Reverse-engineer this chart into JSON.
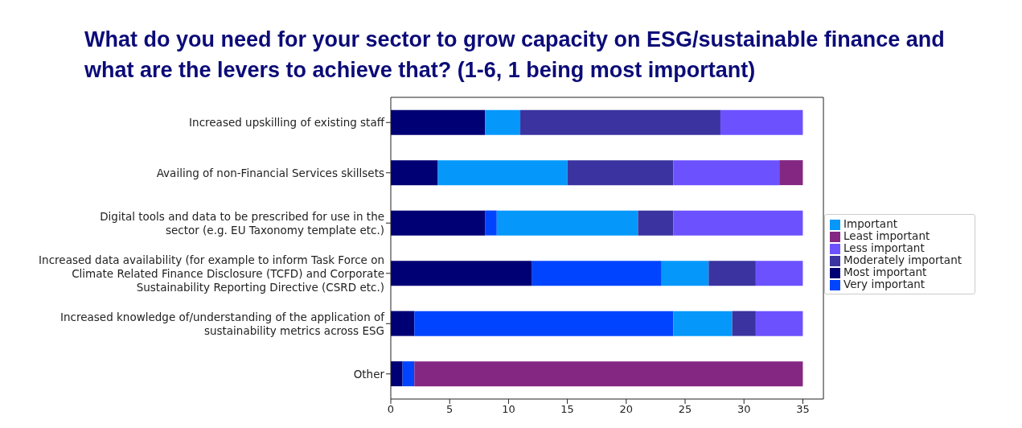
{
  "chart_data": {
    "type": "bar",
    "orientation": "horizontal",
    "stacked": true,
    "title": "What do you need for your sector to grow capacity on ESG/sustainable finance and what are the levers to achieve that? (1-6, 1 being most important)",
    "categories": [
      "Increased upskilling of existing staff",
      "Availing of non-Financial Services skillsets",
      "Digital tools and data to be prescribed for use in the\nsector (e.g. EU Taxonomy template etc.)",
      "Increased data availability (for example to inform Task Force on\nClimate Related Finance Disclosure (TCFD) and Corporate\nSustainability Reporting Directive (CSRD etc.)",
      "Increased knowledge of/understanding of the application of\nsustainability metrics across ESG",
      "Other"
    ],
    "series": [
      {
        "name": "Most important",
        "color": "#000075",
        "values": [
          8,
          4,
          8,
          12,
          2,
          1
        ]
      },
      {
        "name": "Very important",
        "color": "#0044ff",
        "values": [
          0,
          0,
          1,
          11,
          22,
          1
        ]
      },
      {
        "name": "Important",
        "color": "#0598fa",
        "values": [
          3,
          11,
          12,
          4,
          5,
          0
        ]
      },
      {
        "name": "Moderately important",
        "color": "#3a33a0",
        "values": [
          17,
          9,
          3,
          4,
          2,
          0
        ]
      },
      {
        "name": "Less important",
        "color": "#6c52ff",
        "values": [
          7,
          9,
          11,
          4,
          4,
          0
        ]
      },
      {
        "name": "Least important",
        "color": "#842783",
        "values": [
          0,
          2,
          0,
          0,
          0,
          33
        ]
      }
    ],
    "xlim": [
      0,
      36.75
    ],
    "xticks": [
      0,
      5,
      10,
      15,
      20,
      25,
      30,
      35
    ],
    "grid": false,
    "legend": "right"
  }
}
